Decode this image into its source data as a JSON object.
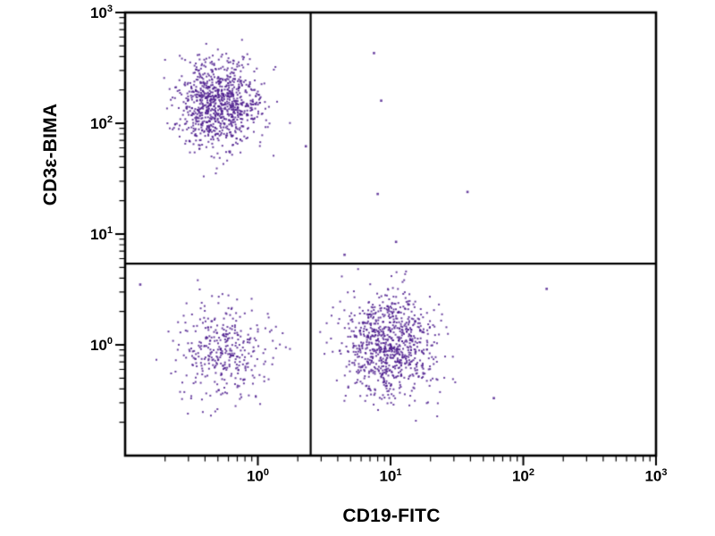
{
  "page": {
    "background": "#ffffff"
  },
  "chart_data": {
    "type": "scatter",
    "title": "",
    "xlabel": "CD19-FITC",
    "ylabel": "CD3ε-BIMA",
    "x_scale": "log",
    "y_scale": "log",
    "xlim": [
      0.1,
      1000
    ],
    "ylim": [
      0.1,
      1000
    ],
    "grid": false,
    "legend": "none",
    "tick_base": "10",
    "x_tick_exponents": [
      0,
      1,
      2,
      3
    ],
    "y_tick_exponents": [
      0,
      1,
      2,
      3
    ],
    "point_color": "#4a1a8c",
    "axis_color": "#000000",
    "quadrant_gate": {
      "x": 2.5,
      "y": 5.4
    },
    "clusters": [
      {
        "name": "CD3e+ CD19- (upper-left quadrant)",
        "n": 900,
        "center_x": 0.5,
        "center_y": 150,
        "sigma_log_x": 0.16,
        "sigma_log_y": 0.2
      },
      {
        "name": "CD3e- CD19- (lower-left quadrant)",
        "n": 360,
        "center_x": 0.55,
        "center_y": 0.85,
        "sigma_log_x": 0.17,
        "sigma_log_y": 0.23
      },
      {
        "name": "CD3e- CD19+ (lower-right quadrant)",
        "n": 850,
        "center_x": 9.7,
        "center_y": 1.0,
        "sigma_log_x": 0.17,
        "sigma_log_y": 0.23
      }
    ],
    "outlier_points": [
      [
        7.5,
        430
      ],
      [
        8.5,
        160
      ],
      [
        38,
        24
      ],
      [
        8,
        23
      ],
      [
        11,
        8.5
      ],
      [
        150,
        3.2
      ],
      [
        60,
        0.33
      ],
      [
        2.3,
        62
      ],
      [
        4.5,
        6.5
      ],
      [
        0.13,
        3.5
      ]
    ],
    "seed": 42
  }
}
